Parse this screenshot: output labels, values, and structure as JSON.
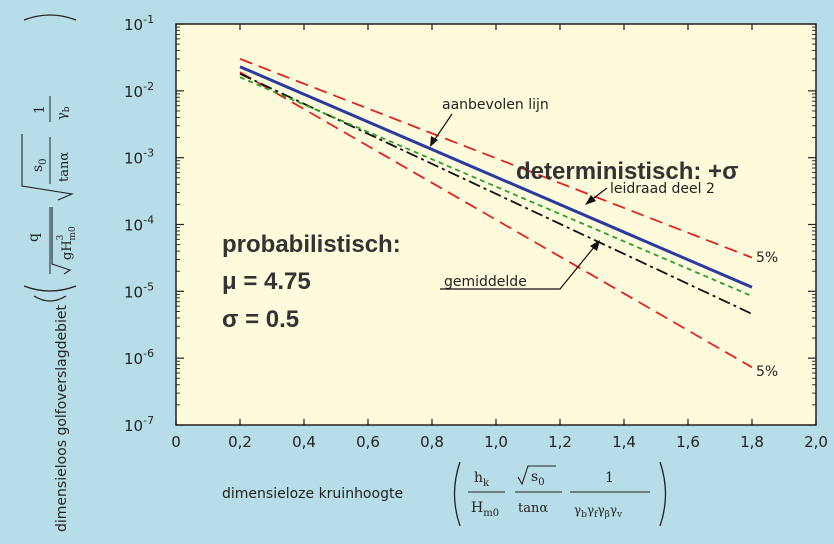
{
  "chart_data": {
    "type": "line",
    "x_ticks": [
      "0",
      "0,2",
      "0,4",
      "0,6",
      "0,8",
      "1,0",
      "1,2",
      "1,4",
      "1,6",
      "1,8",
      "2,0"
    ],
    "y_ticks": [
      {
        "base": "10",
        "exp": "-1"
      },
      {
        "base": "10",
        "exp": "-2"
      },
      {
        "base": "10",
        "exp": "-3"
      },
      {
        "base": "10",
        "exp": "-4"
      },
      {
        "base": "10",
        "exp": "-5"
      },
      {
        "base": "10",
        "exp": "-6"
      },
      {
        "base": "10",
        "exp": "-7"
      }
    ],
    "xlim": [
      0,
      2.0
    ],
    "ylim": [
      1e-07,
      0.1
    ],
    "yscale": "log",
    "grid": false,
    "xlabel": "dimensieloze kruinhoogte",
    "xlabel_formula": {
      "term1_num": "h",
      "term1_num_sub": "k",
      "term1_den": "H",
      "term1_den_sub": "m0",
      "term2_num": "s",
      "term2_num_sub": "0",
      "term2_den": "tanα",
      "term3_num": "1",
      "term3_den": "γ",
      "term3_den_subs": [
        "b",
        "f",
        "β",
        "v"
      ]
    },
    "ylabel": "dimensieloos golfoverslagdebiet",
    "ylabel_formula": {
      "num": "q",
      "den_g": "gH",
      "den_exp": "3",
      "den_sub": "m0",
      "mid_num": "s",
      "mid_num_sub": "0",
      "mid_den": "tanα",
      "right_num": "1",
      "right_den": "γ",
      "right_den_sub": "b"
    },
    "series": [
      {
        "name": "aanbevolen lijn",
        "color": "#2a3aa0",
        "style": "solid",
        "x": [
          0.2,
          1.8
        ],
        "y": [
          0.023,
          1.15e-05
        ]
      },
      {
        "name": "leidraad deel 2",
        "color": "#2aa02a",
        "style": "short-dash",
        "x": [
          0.2,
          1.8
        ],
        "y": [
          0.016,
          8.5e-06
        ]
      },
      {
        "name": "gemiddelde",
        "color": "#111111",
        "style": "dash-dot",
        "x": [
          0.2,
          1.8
        ],
        "y": [
          0.018,
          4.6e-06
        ]
      },
      {
        "name": "5%",
        "color": "#e02424",
        "style": "long-dash",
        "x": [
          0.2,
          1.8
        ],
        "y": [
          0.03,
          3.2e-05
        ]
      },
      {
        "name": "5%",
        "color": "#e02424",
        "style": "long-dash",
        "x": [
          0.2,
          1.8
        ],
        "y": [
          0.019,
          7.3e-07
        ]
      }
    ],
    "annotations": {
      "aanbevolen": "aanbevolen lijn",
      "leidraad": "leidraad deel 2",
      "gemiddelde": "gemiddelde",
      "upper5": "5%",
      "lower5": "5%",
      "deterministic": "deterministisch: +σ",
      "prob_title": "probabilistisch:",
      "prob_mu": "μ = 4.75",
      "prob_sigma": "σ = 0.5"
    },
    "colors": {
      "background": "#b7dde8",
      "plot_area": "#fdfbdb"
    }
  }
}
